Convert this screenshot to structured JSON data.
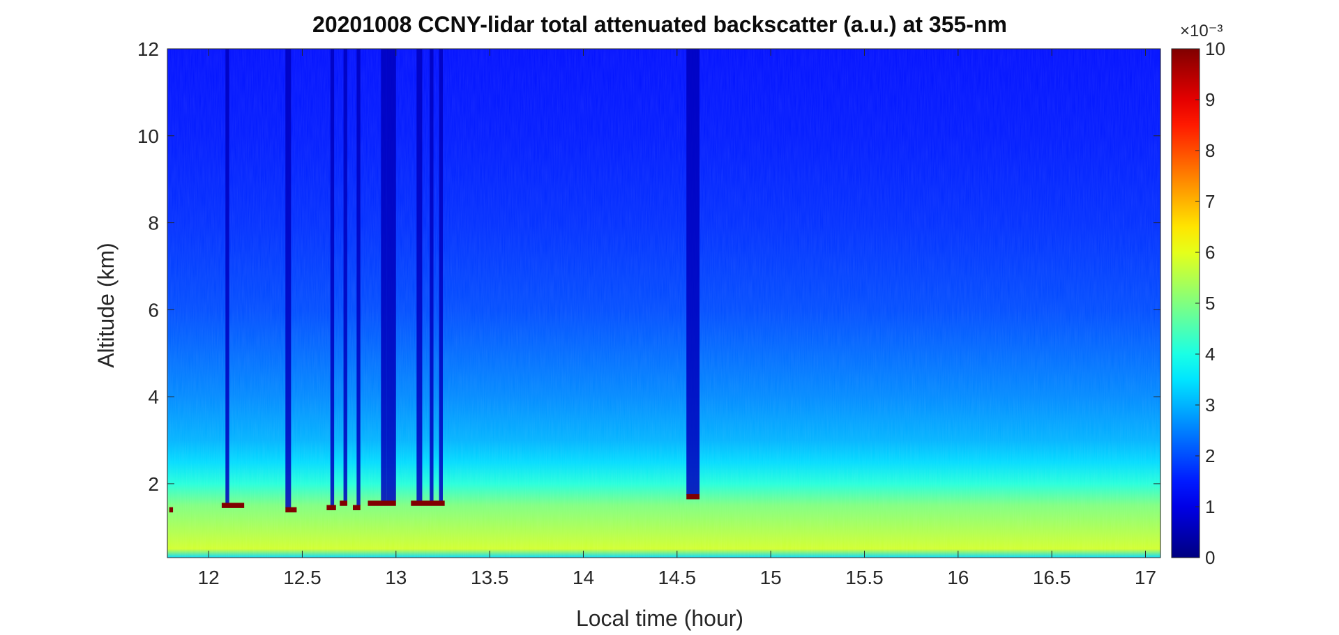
{
  "chart_data": {
    "type": "heatmap",
    "title": "20201008 CCNY-lidar total attenuated backscatter (a.u.) at 355-nm",
    "xlabel": "Local time (hour)",
    "ylabel": "Altitude (km)",
    "xlim": [
      11.78,
      17.08
    ],
    "ylim": [
      0.3,
      12
    ],
    "xticks": [
      "12",
      "12.5",
      "13",
      "13.5",
      "14",
      "14.5",
      "15",
      "15.5",
      "16",
      "16.5",
      "17"
    ],
    "yticks": [
      "2",
      "4",
      "6",
      "8",
      "10",
      "12"
    ],
    "colorbar": {
      "colormap": "jet",
      "range": [
        0,
        10
      ],
      "ticks": [
        "0",
        "1",
        "2",
        "3",
        "4",
        "5",
        "6",
        "7",
        "8",
        "9",
        "10"
      ],
      "exponent_label": "×10⁻³"
    },
    "grid": false,
    "profile": {
      "altitudes_km": [
        0.3,
        0.5,
        1.0,
        1.5,
        2.0,
        2.5,
        3.0,
        4.0,
        5.0,
        6.0,
        8.0,
        10.0,
        12.0
      ],
      "values_e-3": [
        3.4,
        5.8,
        5.4,
        5.0,
        4.1,
        3.4,
        3.0,
        2.6,
        2.3,
        2.0,
        1.7,
        1.5,
        1.4
      ]
    },
    "dark_bands": [
      {
        "start_hour": 12.09,
        "end_hour": 12.11,
        "top_km": 12,
        "bottom_km": 1.55
      },
      {
        "start_hour": 12.41,
        "end_hour": 12.44,
        "top_km": 12,
        "bottom_km": 1.45
      },
      {
        "start_hour": 12.65,
        "end_hour": 12.67,
        "top_km": 12,
        "bottom_km": 1.45
      },
      {
        "start_hour": 12.72,
        "end_hour": 12.74,
        "top_km": 12,
        "bottom_km": 1.5
      },
      {
        "start_hour": 12.79,
        "end_hour": 12.81,
        "top_km": 12,
        "bottom_km": 1.5
      },
      {
        "start_hour": 12.92,
        "end_hour": 12.95,
        "top_km": 12,
        "bottom_km": 1.6
      },
      {
        "start_hour": 12.95,
        "end_hour": 13.0,
        "top_km": 12,
        "bottom_km": 1.6
      },
      {
        "start_hour": 13.11,
        "end_hour": 13.14,
        "top_km": 12,
        "bottom_km": 1.6
      },
      {
        "start_hour": 13.18,
        "end_hour": 13.2,
        "top_km": 12,
        "bottom_km": 1.6
      },
      {
        "start_hour": 13.23,
        "end_hour": 13.25,
        "top_km": 12,
        "bottom_km": 1.6
      },
      {
        "start_hour": 14.55,
        "end_hour": 14.62,
        "top_km": 12,
        "bottom_km": 1.75
      }
    ],
    "cloud_patches": [
      {
        "start_hour": 11.79,
        "end_hour": 11.81,
        "alt_km": 1.4
      },
      {
        "start_hour": 12.07,
        "end_hour": 12.19,
        "alt_km": 1.5
      },
      {
        "start_hour": 12.41,
        "end_hour": 12.47,
        "alt_km": 1.4
      },
      {
        "start_hour": 12.63,
        "end_hour": 12.68,
        "alt_km": 1.45
      },
      {
        "start_hour": 12.7,
        "end_hour": 12.74,
        "alt_km": 1.55
      },
      {
        "start_hour": 12.77,
        "end_hour": 12.81,
        "alt_km": 1.45
      },
      {
        "start_hour": 12.85,
        "end_hour": 13.0,
        "alt_km": 1.55
      },
      {
        "start_hour": 13.08,
        "end_hour": 13.26,
        "alt_km": 1.55
      },
      {
        "start_hour": 14.55,
        "end_hour": 14.62,
        "alt_km": 1.7
      }
    ]
  }
}
